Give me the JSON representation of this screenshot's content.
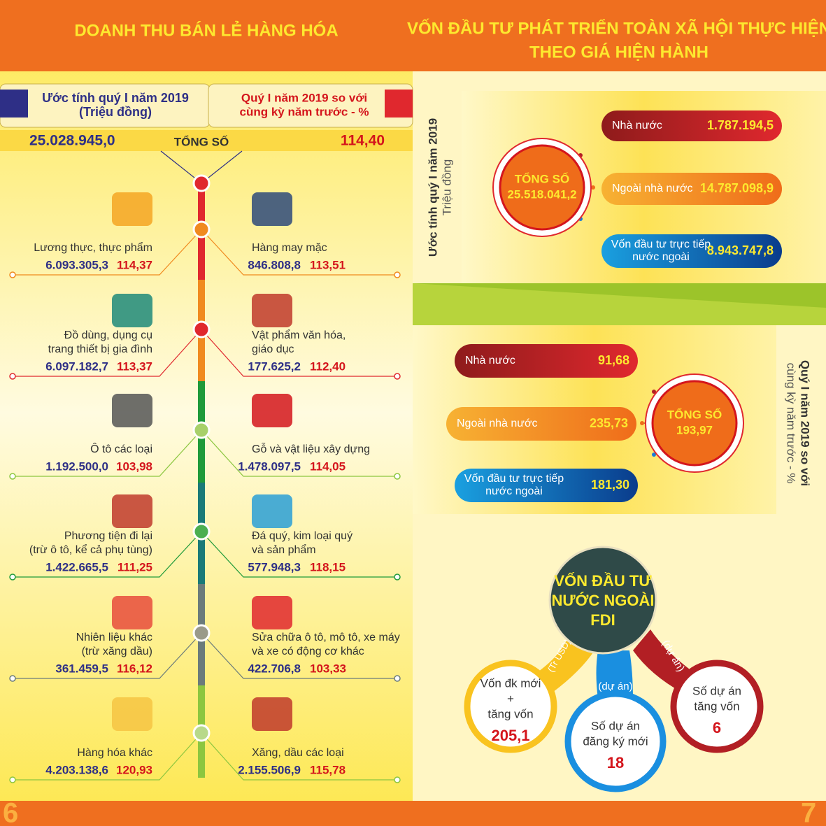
{
  "left": {
    "title": "DOANH THU BÁN LẺ HÀNG HÓA",
    "header_estimate": [
      "Ước tính quý I năm 2019",
      "(Triệu đồng)"
    ],
    "header_compare": [
      "Quý I năm 2019 so với",
      "cùng kỳ năm trước - %"
    ],
    "total": {
      "label": "TỔNG SỐ",
      "value": "25.028.945,0",
      "percent": "114,40"
    },
    "left_items": [
      {
        "name": [
          "Lương thực, thực phẩm"
        ],
        "value": "6.093.305,3",
        "percent": "114,37"
      },
      {
        "name": [
          "Đồ dùng, dụng cụ",
          "trang thiết bị gia đình"
        ],
        "value": "6.097.182,7",
        "percent": "113,37"
      },
      {
        "name": [
          "Ô tô các loại"
        ],
        "value": "1.192.500,0",
        "percent": "103,98"
      },
      {
        "name": [
          "Phương tiện đi lại",
          "(trừ ô tô, kể cả phụ tùng)"
        ],
        "value": "1.422.665,5",
        "percent": "111,25"
      },
      {
        "name": [
          "Nhiên liệu khác",
          "(trừ xăng dầu)"
        ],
        "value": "361.459,5",
        "percent": "116,12"
      },
      {
        "name": [
          "Hàng hóa khác"
        ],
        "value": "4.203.138,6",
        "percent": "120,93"
      }
    ],
    "right_items": [
      {
        "name": [
          "Hàng may mặc"
        ],
        "value": "846.808,8",
        "percent": "113,51"
      },
      {
        "name": [
          "Vật phẩm văn hóa,",
          "giáo dục"
        ],
        "value": "177.625,2",
        "percent": "112,40"
      },
      {
        "name": [
          "Gỗ và vật liệu xây dựng"
        ],
        "value": "1.478.097,5",
        "percent": "114,05"
      },
      {
        "name": [
          "Đá quý, kim loại quý",
          "và sản phẩm"
        ],
        "value": "577.948,3",
        "percent": "118,15"
      },
      {
        "name": [
          "Sửa chữa ô tô, mô tô, xe máy",
          "và xe có động cơ khác"
        ],
        "value": "422.706,8",
        "percent": "103,33"
      },
      {
        "name": [
          "Xăng, dầu các loại"
        ],
        "value": "2.155.506,9",
        "percent": "115,78"
      }
    ],
    "page_number": "6"
  },
  "right": {
    "title": [
      "VỐN ĐẦU TƯ PHÁT TRIỂN TOÀN XÃ HỘI THỰC HIỆN",
      "THEO GIÁ HIỆN HÀNH"
    ],
    "estimate": {
      "label": [
        "Ước tính quý I năm 2019",
        "Triệu đồng"
      ],
      "total": {
        "label": "TỔNG SỐ",
        "value": "25.518.041,2"
      },
      "items": [
        {
          "name": [
            "Nhà nước"
          ],
          "value": "1.787.194,5"
        },
        {
          "name": [
            "Ngoài nhà nước"
          ],
          "value": "14.787.098,9"
        },
        {
          "name": [
            "Vốn đầu tư trực tiếp",
            "nước ngoài"
          ],
          "value": "8.943.747,8"
        }
      ]
    },
    "compare": {
      "label": [
        "Quý I năm 2019 so với",
        "cùng kỳ năm trước - %"
      ],
      "total": {
        "label": "TỔNG SỐ",
        "value": "193,97"
      },
      "items": [
        {
          "name": [
            "Nhà nước"
          ],
          "value": "91,68"
        },
        {
          "name": [
            "Ngoài nhà nước"
          ],
          "value": "235,73"
        },
        {
          "name": [
            "Vốn đầu tư trực tiếp",
            "nước ngoài"
          ],
          "value": "181,30"
        }
      ]
    },
    "fdi": {
      "title": [
        "VỐN ĐẦU TƯ",
        "NƯỚC NGOÀI",
        "FDI"
      ],
      "items": [
        {
          "name": [
            "Vốn đk mới",
            "+",
            "tăng vốn"
          ],
          "unit": "(Tr USD)",
          "value": "205,1"
        },
        {
          "name": [
            "Số dự án",
            "đăng ký mới"
          ],
          "unit": "(dự án)",
          "value": "18"
        },
        {
          "name": [
            "Số dự án",
            "tăng vốn"
          ],
          "unit": "(dự án)",
          "value": "6"
        }
      ]
    },
    "page_number": "7"
  }
}
